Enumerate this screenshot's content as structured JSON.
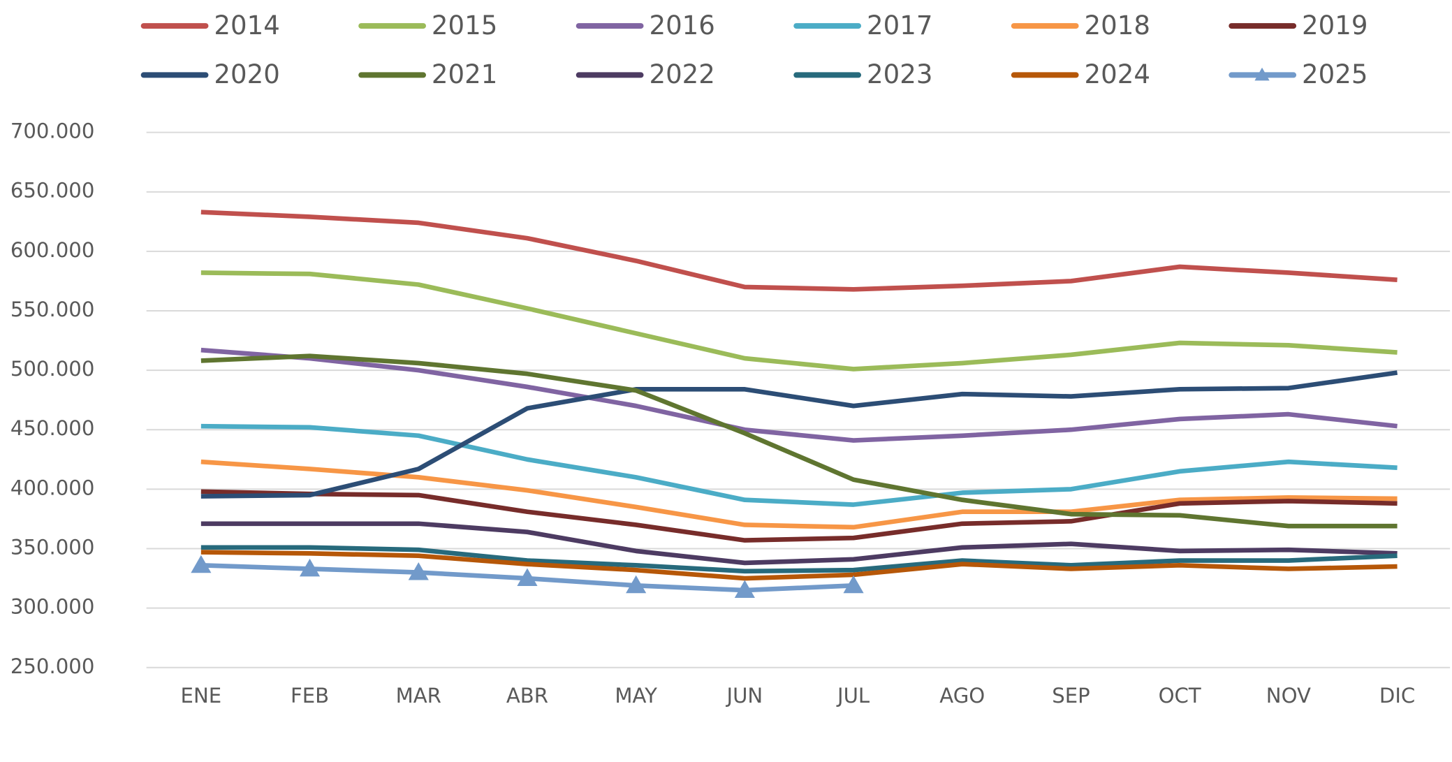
{
  "chart_data": {
    "type": "line",
    "categories": [
      "ENE",
      "FEB",
      "MAR",
      "ABR",
      "MAY",
      "JUN",
      "JUL",
      "AGO",
      "SEP",
      "OCT",
      "NOV",
      "DIC"
    ],
    "ylim": [
      250000,
      700000
    ],
    "yticks": [
      {
        "value": 250000,
        "label": "250.000"
      },
      {
        "value": 300000,
        "label": "300.000"
      },
      {
        "value": 350000,
        "label": "350.000"
      },
      {
        "value": 400000,
        "label": "400.000"
      },
      {
        "value": 450000,
        "label": "450.000"
      },
      {
        "value": 500000,
        "label": "500.000"
      },
      {
        "value": 550000,
        "label": "550.000"
      },
      {
        "value": 600000,
        "label": "600.000"
      },
      {
        "value": 650000,
        "label": "650.000"
      },
      {
        "value": 700000,
        "label": "700.000"
      }
    ],
    "grid": true,
    "legend": "top",
    "series": [
      {
        "name": "2014",
        "color": "#c0504d",
        "values": [
          633000,
          629000,
          624000,
          611000,
          592000,
          570000,
          568000,
          571000,
          575000,
          587000,
          582000,
          576000
        ]
      },
      {
        "name": "2015",
        "color": "#9bbb59",
        "values": [
          582000,
          581000,
          572000,
          552000,
          531000,
          510000,
          501000,
          506000,
          513000,
          523000,
          521000,
          515000
        ]
      },
      {
        "name": "2016",
        "color": "#8064a2",
        "values": [
          517000,
          510000,
          500000,
          486000,
          470000,
          450000,
          441000,
          445000,
          450000,
          459000,
          463000,
          453000
        ]
      },
      {
        "name": "2017",
        "color": "#4bacc6",
        "values": [
          453000,
          452000,
          445000,
          425000,
          410000,
          391000,
          387000,
          397000,
          400000,
          415000,
          423000,
          418000
        ]
      },
      {
        "name": "2018",
        "color": "#f79646",
        "values": [
          423000,
          417000,
          410000,
          399000,
          385000,
          370000,
          368000,
          381000,
          381000,
          391000,
          393000,
          392000
        ]
      },
      {
        "name": "2019",
        "color": "#772c2a",
        "values": [
          398000,
          396000,
          395000,
          381000,
          370000,
          357000,
          359000,
          371000,
          373000,
          388000,
          390000,
          388000
        ]
      },
      {
        "name": "2020",
        "color": "#2c4d75",
        "values": [
          394000,
          395000,
          417000,
          468000,
          484000,
          484000,
          470000,
          480000,
          478000,
          484000,
          485000,
          498000
        ]
      },
      {
        "name": "2021",
        "color": "#5f7530",
        "values": [
          508000,
          512000,
          506000,
          497000,
          483000,
          447000,
          408000,
          391000,
          379000,
          378000,
          369000,
          369000
        ]
      },
      {
        "name": "2022",
        "color": "#4d3b62",
        "values": [
          371000,
          371000,
          371000,
          364000,
          348000,
          338000,
          341000,
          351000,
          354000,
          348000,
          349000,
          346000
        ]
      },
      {
        "name": "2023",
        "color": "#276a7c",
        "values": [
          351000,
          351000,
          349000,
          340000,
          336000,
          331000,
          332000,
          340000,
          336000,
          340000,
          340000,
          344000
        ]
      },
      {
        "name": "2024",
        "color": "#b65708",
        "values": [
          347000,
          346000,
          344000,
          337000,
          332000,
          325000,
          328000,
          337000,
          333000,
          336000,
          333000,
          335000
        ]
      },
      {
        "name": "2025",
        "color": "#729aca",
        "marker": "triangle",
        "values": [
          336000,
          333000,
          330000,
          325000,
          319000,
          315000,
          319000,
          null,
          null,
          null,
          null,
          null
        ]
      }
    ]
  }
}
